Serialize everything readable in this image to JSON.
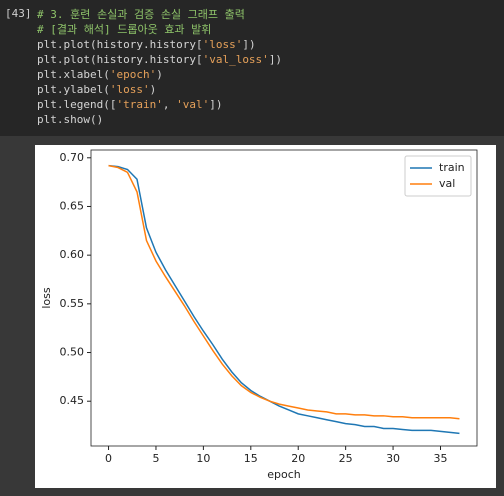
{
  "cell": {
    "prompt": "[43]",
    "lines": [
      [
        {
          "text": "# 3. 훈련 손실과 검증 손실 그래프 출력",
          "color": "#8fc46a"
        }
      ],
      [
        {
          "text": "# [결과 해석] 드롭아웃 효과 발휘",
          "color": "#8fc46a"
        }
      ],
      [
        {
          "text": "plt.plot(history.history[",
          "color": "#d4d4d4"
        },
        {
          "text": "'loss'",
          "color": "#e6a15a"
        },
        {
          "text": "])",
          "color": "#d4d4d4"
        }
      ],
      [
        {
          "text": "plt.plot(history.history[",
          "color": "#d4d4d4"
        },
        {
          "text": "'val_loss'",
          "color": "#e6a15a"
        },
        {
          "text": "])",
          "color": "#d4d4d4"
        }
      ],
      [
        {
          "text": "plt.xlabel(",
          "color": "#d4d4d4"
        },
        {
          "text": "'epoch'",
          "color": "#e6a15a"
        },
        {
          "text": ")",
          "color": "#d4d4d4"
        }
      ],
      [
        {
          "text": "plt.ylabel(",
          "color": "#d4d4d4"
        },
        {
          "text": "'loss'",
          "color": "#e6a15a"
        },
        {
          "text": ")",
          "color": "#d4d4d4"
        }
      ],
      [
        {
          "text": "plt.legend([",
          "color": "#d4d4d4"
        },
        {
          "text": "'train'",
          "color": "#e6a15a"
        },
        {
          "text": ", ",
          "color": "#d4d4d4"
        },
        {
          "text": "'val'",
          "color": "#e6a15a"
        },
        {
          "text": "])",
          "color": "#d4d4d4"
        }
      ],
      [
        {
          "text": "plt.show()",
          "color": "#d4d4d4"
        }
      ]
    ]
  },
  "chart_data": {
    "type": "line",
    "xlabel": "epoch",
    "ylabel": "loss",
    "x": [
      0,
      1,
      2,
      3,
      4,
      5,
      6,
      7,
      8,
      9,
      10,
      11,
      12,
      13,
      14,
      15,
      16,
      17,
      18,
      19,
      20,
      21,
      22,
      23,
      24,
      25,
      26,
      27,
      28,
      29,
      30,
      31,
      32,
      33,
      34,
      35,
      36,
      37
    ],
    "series": [
      {
        "name": "train",
        "color": "#1f77b4",
        "values": [
          0.692,
          0.691,
          0.688,
          0.678,
          0.628,
          0.603,
          0.585,
          0.569,
          0.553,
          0.537,
          0.522,
          0.508,
          0.493,
          0.48,
          0.469,
          0.461,
          0.455,
          0.45,
          0.445,
          0.441,
          0.437,
          0.435,
          0.433,
          0.431,
          0.429,
          0.427,
          0.426,
          0.424,
          0.424,
          0.422,
          0.422,
          0.421,
          0.42,
          0.42,
          0.42,
          0.419,
          0.418,
          0.417
        ]
      },
      {
        "name": "val",
        "color": "#ff7f0e",
        "values": [
          0.692,
          0.69,
          0.685,
          0.665,
          0.615,
          0.594,
          0.578,
          0.563,
          0.548,
          0.532,
          0.517,
          0.502,
          0.488,
          0.476,
          0.466,
          0.459,
          0.454,
          0.45,
          0.447,
          0.445,
          0.443,
          0.441,
          0.44,
          0.439,
          0.437,
          0.437,
          0.436,
          0.436,
          0.435,
          0.435,
          0.434,
          0.434,
          0.433,
          0.433,
          0.433,
          0.433,
          0.433,
          0.432
        ]
      }
    ],
    "xlim": [
      -1.85,
      38.85
    ],
    "xticks": [
      0,
      5,
      10,
      15,
      20,
      25,
      30,
      35
    ],
    "ylim": [
      0.404,
      0.708
    ],
    "yticks": [
      {
        "value": 0.45,
        "label": "0.45"
      },
      {
        "value": 0.5,
        "label": "0.50"
      },
      {
        "value": 0.55,
        "label": "0.55"
      },
      {
        "value": 0.6,
        "label": "0.60"
      },
      {
        "value": 0.65,
        "label": "0.65"
      },
      {
        "value": 0.7,
        "label": "0.70"
      }
    ],
    "legend": "upper right",
    "grid": false
  }
}
